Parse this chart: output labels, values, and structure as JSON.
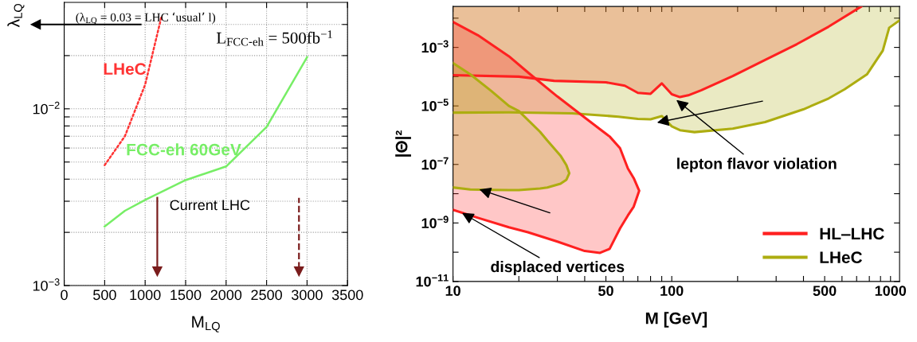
{
  "chart_data": [
    {
      "type": "line",
      "xlabel": "M$_{LQ}$",
      "ylabel": "λ$_{LQ}$",
      "xlim": [
        0,
        3500
      ],
      "xticks": [
        0,
        500,
        1000,
        1500,
        2000,
        2500,
        3000,
        3500
      ],
      "ylim": [
        0.001,
        0.04
      ],
      "yticks": [
        {
          "value": 0.001,
          "label": "10$^{−3}$"
        },
        {
          "value": 0.002,
          "label": null
        },
        {
          "value": 0.003,
          "label": null
        },
        {
          "value": 0.004,
          "label": null
        },
        {
          "value": 0.005,
          "label": null
        },
        {
          "value": 0.006,
          "label": null
        },
        {
          "value": 0.007,
          "label": null
        },
        {
          "value": 0.008,
          "label": null
        },
        {
          "value": 0.009,
          "label": null
        },
        {
          "value": 0.01,
          "label": "10$^{−2}$"
        },
        {
          "value": 0.02,
          "label": null
        },
        {
          "value": 0.03,
          "label": null
        }
      ],
      "log": "y",
      "grid": true,
      "series": [
        {
          "name": "LHeC",
          "color": "#ff3333",
          "line_style": "dotted",
          "x": [
            500,
            750,
            1000,
            1200
          ],
          "values": [
            0.0048,
            0.007,
            0.0137,
            0.033
          ]
        },
        {
          "name": "FCC-eh 60GeV",
          "color": "#77ee66",
          "line_style": "solid",
          "x": [
            500,
            750,
            1000,
            1500,
            2000,
            2500,
            3000
          ],
          "values": [
            0.00216,
            0.00265,
            0.00305,
            0.00395,
            0.00472,
            0.0079,
            0.0196
          ]
        }
      ],
      "annotations": [
        "L$_{FCC-eh}$ = 500fb$^{−1}$"
      ],
      "ref_lines": [
        {
          "axis": "y",
          "value": 0.03,
          "label": "(λ$_{LQ}$ = 0.03 = LHC ‘usual’ l)",
          "color": "#000000",
          "line_style": "solid"
        },
        {
          "axis": "x",
          "value": 1150,
          "label": "Current LHC",
          "color": "#7a1c1c",
          "line_style": "solid"
        },
        {
          "axis": "x",
          "value": 2900,
          "color": "#7a1c1c",
          "line_style": "dashed"
        }
      ]
    },
    {
      "type": "line",
      "xlabel": "M [GeV]",
      "ylabel": "|Θ|²",
      "log": "xy",
      "grid": false,
      "legend": "bottom right",
      "xlim": [
        10,
        1100
      ],
      "xticks": [
        10,
        {
          "value": 20,
          "label": null
        },
        {
          "value": 30,
          "label": null
        },
        {
          "value": 40,
          "label": null
        },
        50,
        {
          "value": 60,
          "label": null
        },
        {
          "value": 70,
          "label": null
        },
        {
          "value": 80,
          "label": null
        },
        {
          "value": 90,
          "label": null
        },
        100,
        {
          "value": 200,
          "label": null
        },
        {
          "value": 300,
          "label": null
        },
        {
          "value": 400,
          "label": null
        },
        500,
        {
          "value": 600,
          "label": null
        },
        {
          "value": 700,
          "label": null
        },
        {
          "value": 800,
          "label": null
        },
        {
          "value": 900,
          "label": null
        },
        1000
      ],
      "ylim": [
        1e-11,
        0.025
      ],
      "yticks": [
        {
          "value": 1e-11,
          "label": "10$^{−11}$"
        },
        {
          "value": 1e-10,
          "label": null
        },
        {
          "value": 1e-09,
          "label": "10$^{−9}$"
        },
        {
          "value": 1e-08,
          "label": null
        },
        {
          "value": 1e-07,
          "label": "10$^{−7}$"
        },
        {
          "value": 1e-06,
          "label": null
        },
        {
          "value": 1e-05,
          "label": "10$^{−5}$"
        },
        {
          "value": 0.0001,
          "label": null
        },
        {
          "value": 0.001,
          "label": "10$^{−3}$"
        },
        {
          "value": 0.01,
          "label": null
        }
      ],
      "series": [
        {
          "name": "HL‒LHC",
          "color": "#ff2020",
          "x": [
            10,
            20,
            29,
            50,
            61,
            70,
            80,
            90,
            100,
            109,
            119,
            136,
            190,
            267,
            373,
            521,
            735
          ],
          "values": [
            0.000113,
            0.0001,
            7.2e-05,
            6.4e-05,
            4.9e-05,
            2.8e-05,
            2.6e-05,
            5.9e-05,
            2.5e-05,
            2e-05,
            2.3e-05,
            3.4e-05,
            0.000105,
            0.00037,
            0.00129,
            0.0051,
            0.025
          ]
        },
        {
          "name": "LHeC",
          "color": "#adad10",
          "x": [
            10,
            18,
            35,
            57,
            70,
            80,
            90,
            100,
            109,
            127,
            190,
            267,
            399,
            521,
            617,
            780,
            922,
            986,
            1100
          ],
          "values": [
            5.9e-06,
            6e-06,
            5.6e-06,
            4.3e-06,
            3.6e-06,
            3.5e-06,
            4.5e-06,
            2e-06,
            1.48e-06,
            1.27e-06,
            1.68e-06,
            2.8e-06,
            7.6e-06,
            1.8e-05,
            3.7e-05,
            0.000119,
            0.00078,
            0.0047,
            0.0084
          ]
        },
        {
          "color": "#ff2020",
          "x": [
            10,
            13,
            18,
            22,
            30,
            40,
            47,
            52,
            58,
            63,
            67,
            71,
            67,
            63,
            58,
            52,
            47,
            40,
            30,
            22,
            18,
            13,
            10
          ],
          "values": [
            0.0074,
            0.0026,
            0.0005,
            0.00014,
            2.1e-05,
            4e-06,
            1.6e-06,
            9e-07,
            3.6e-07,
            7.3e-08,
            3.4e-08,
            1.26e-08,
            3.6e-09,
            1.8e-09,
            6.5e-10,
            1.3e-10,
            9.5e-11,
            1.1e-10,
            2.3e-10,
            4.8e-10,
            7.1e-10,
            1.5e-09,
            2.8e-09
          ]
        },
        {
          "color": "#adad10",
          "x": [
            10,
            12,
            15,
            18,
            20,
            25,
            27,
            31,
            33,
            34,
            33,
            31,
            27,
            25,
            20,
            18,
            15,
            12,
            10
          ],
          "values": [
            0.00029,
            0.00012,
            3.2e-05,
            1e-05,
            6.7e-06,
            1.3e-06,
            6.5e-07,
            2e-07,
            9.4e-08,
            5e-08,
            3e-08,
            2.2e-08,
            1.63e-08,
            1.5e-08,
            1.33e-08,
            1.33e-08,
            1.35e-08,
            1.4e-08,
            1.63e-08
          ]
        }
      ],
      "annotations": [
        {
          "text": "lepton flavor violation",
          "x": 105,
          "y": 1.6e-05
        },
        {
          "text": "displaced vertices",
          "x": 11,
          "y": 2.2e-09
        }
      ]
    }
  ]
}
